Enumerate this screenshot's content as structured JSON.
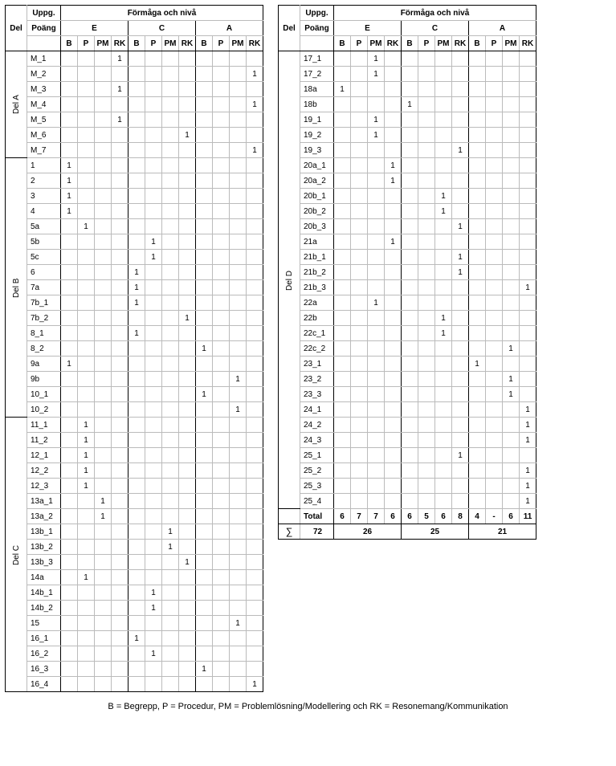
{
  "headers": {
    "del": "Del",
    "uppg": "Uppg.",
    "poang": "Poäng",
    "formaga": "Förmåga och nivå",
    "levels": [
      "E",
      "C",
      "A"
    ],
    "subs": [
      "B",
      "P",
      "PM",
      "RK"
    ]
  },
  "footnote": "B = Begrepp, P = Procedur, PM = Problemlösning/Modellering och RK = Resonemang/Kommunikation",
  "leftSections": [
    {
      "del": "Del A",
      "rows": [
        {
          "u": "M_1",
          "v": [
            "",
            "",
            "",
            "1",
            "",
            "",
            "",
            "",
            "",
            "",
            "",
            ""
          ]
        },
        {
          "u": "M_2",
          "v": [
            "",
            "",
            "",
            "",
            "",
            "",
            "",
            "",
            "",
            "",
            "",
            "1"
          ]
        },
        {
          "u": "M_3",
          "v": [
            "",
            "",
            "",
            "1",
            "",
            "",
            "",
            "",
            "",
            "",
            "",
            ""
          ]
        },
        {
          "u": "M_4",
          "v": [
            "",
            "",
            "",
            "",
            "",
            "",
            "",
            "",
            "",
            "",
            "",
            "1"
          ]
        },
        {
          "u": "M_5",
          "v": [
            "",
            "",
            "",
            "1",
            "",
            "",
            "",
            "",
            "",
            "",
            "",
            ""
          ]
        },
        {
          "u": "M_6",
          "v": [
            "",
            "",
            "",
            "",
            "",
            "",
            "",
            "1",
            "",
            "",
            "",
            ""
          ]
        },
        {
          "u": "M_7",
          "v": [
            "",
            "",
            "",
            "",
            "",
            "",
            "",
            "",
            "",
            "",
            "",
            "1"
          ]
        }
      ]
    },
    {
      "del": "Del B",
      "rows": [
        {
          "u": "1",
          "v": [
            "1",
            "",
            "",
            "",
            "",
            "",
            "",
            "",
            "",
            "",
            "",
            ""
          ]
        },
        {
          "u": "2",
          "v": [
            "1",
            "",
            "",
            "",
            "",
            "",
            "",
            "",
            "",
            "",
            "",
            ""
          ]
        },
        {
          "u": "3",
          "v": [
            "1",
            "",
            "",
            "",
            "",
            "",
            "",
            "",
            "",
            "",
            "",
            ""
          ]
        },
        {
          "u": "4",
          "v": [
            "1",
            "",
            "",
            "",
            "",
            "",
            "",
            "",
            "",
            "",
            "",
            ""
          ]
        },
        {
          "u": "5a",
          "v": [
            "",
            "1",
            "",
            "",
            "",
            "",
            "",
            "",
            "",
            "",
            "",
            ""
          ]
        },
        {
          "u": "5b",
          "v": [
            "",
            "",
            "",
            "",
            "",
            "1",
            "",
            "",
            "",
            "",
            "",
            ""
          ]
        },
        {
          "u": "5c",
          "v": [
            "",
            "",
            "",
            "",
            "",
            "1",
            "",
            "",
            "",
            "",
            "",
            ""
          ]
        },
        {
          "u": "6",
          "v": [
            "",
            "",
            "",
            "",
            "1",
            "",
            "",
            "",
            "",
            "",
            "",
            ""
          ]
        },
        {
          "u": "7a",
          "v": [
            "",
            "",
            "",
            "",
            "1",
            "",
            "",
            "",
            "",
            "",
            "",
            ""
          ]
        },
        {
          "u": "7b_1",
          "v": [
            "",
            "",
            "",
            "",
            "1",
            "",
            "",
            "",
            "",
            "",
            "",
            ""
          ]
        },
        {
          "u": "7b_2",
          "v": [
            "",
            "",
            "",
            "",
            "",
            "",
            "",
            "1",
            "",
            "",
            "",
            ""
          ]
        },
        {
          "u": "8_1",
          "v": [
            "",
            "",
            "",
            "",
            "1",
            "",
            "",
            "",
            "",
            "",
            "",
            ""
          ]
        },
        {
          "u": "8_2",
          "v": [
            "",
            "",
            "",
            "",
            "",
            "",
            "",
            "",
            "1",
            "",
            "",
            ""
          ]
        },
        {
          "u": "9a",
          "v": [
            "1",
            "",
            "",
            "",
            "",
            "",
            "",
            "",
            "",
            "",
            "",
            ""
          ]
        },
        {
          "u": "9b",
          "v": [
            "",
            "",
            "",
            "",
            "",
            "",
            "",
            "",
            "",
            "",
            "1",
            ""
          ]
        },
        {
          "u": "10_1",
          "v": [
            "",
            "",
            "",
            "",
            "",
            "",
            "",
            "",
            "1",
            "",
            "",
            ""
          ]
        },
        {
          "u": "10_2",
          "v": [
            "",
            "",
            "",
            "",
            "",
            "",
            "",
            "",
            "",
            "",
            "1",
            ""
          ]
        }
      ]
    },
    {
      "del": "Del C",
      "rows": [
        {
          "u": "11_1",
          "v": [
            "",
            "1",
            "",
            "",
            "",
            "",
            "",
            "",
            "",
            "",
            "",
            ""
          ]
        },
        {
          "u": "11_2",
          "v": [
            "",
            "1",
            "",
            "",
            "",
            "",
            "",
            "",
            "",
            "",
            "",
            ""
          ]
        },
        {
          "u": "12_1",
          "v": [
            "",
            "1",
            "",
            "",
            "",
            "",
            "",
            "",
            "",
            "",
            "",
            ""
          ]
        },
        {
          "u": "12_2",
          "v": [
            "",
            "1",
            "",
            "",
            "",
            "",
            "",
            "",
            "",
            "",
            "",
            ""
          ]
        },
        {
          "u": "12_3",
          "v": [
            "",
            "1",
            "",
            "",
            "",
            "",
            "",
            "",
            "",
            "",
            "",
            ""
          ]
        },
        {
          "u": "13a_1",
          "v": [
            "",
            "",
            "1",
            "",
            "",
            "",
            "",
            "",
            "",
            "",
            "",
            ""
          ]
        },
        {
          "u": "13a_2",
          "v": [
            "",
            "",
            "1",
            "",
            "",
            "",
            "",
            "",
            "",
            "",
            "",
            ""
          ]
        },
        {
          "u": "13b_1",
          "v": [
            "",
            "",
            "",
            "",
            "",
            "",
            "1",
            "",
            "",
            "",
            "",
            ""
          ]
        },
        {
          "u": "13b_2",
          "v": [
            "",
            "",
            "",
            "",
            "",
            "",
            "1",
            "",
            "",
            "",
            "",
            ""
          ]
        },
        {
          "u": "13b_3",
          "v": [
            "",
            "",
            "",
            "",
            "",
            "",
            "",
            "1",
            "",
            "",
            "",
            ""
          ]
        },
        {
          "u": "14a",
          "v": [
            "",
            "1",
            "",
            "",
            "",
            "",
            "",
            "",
            "",
            "",
            "",
            ""
          ]
        },
        {
          "u": "14b_1",
          "v": [
            "",
            "",
            "",
            "",
            "",
            "1",
            "",
            "",
            "",
            "",
            "",
            ""
          ]
        },
        {
          "u": "14b_2",
          "v": [
            "",
            "",
            "",
            "",
            "",
            "1",
            "",
            "",
            "",
            "",
            "",
            ""
          ]
        },
        {
          "u": "15",
          "v": [
            "",
            "",
            "",
            "",
            "",
            "",
            "",
            "",
            "",
            "",
            "1",
            ""
          ]
        },
        {
          "u": "16_1",
          "v": [
            "",
            "",
            "",
            "",
            "1",
            "",
            "",
            "",
            "",
            "",
            "",
            ""
          ]
        },
        {
          "u": "16_2",
          "v": [
            "",
            "",
            "",
            "",
            "",
            "1",
            "",
            "",
            "",
            "",
            "",
            ""
          ]
        },
        {
          "u": "16_3",
          "v": [
            "",
            "",
            "",
            "",
            "",
            "",
            "",
            "",
            "1",
            "",
            "",
            ""
          ]
        },
        {
          "u": "16_4",
          "v": [
            "",
            "",
            "",
            "",
            "",
            "",
            "",
            "",
            "",
            "",
            "",
            "1"
          ]
        }
      ]
    }
  ],
  "rightSections": [
    {
      "del": "Del D",
      "rows": [
        {
          "u": "17_1",
          "v": [
            "",
            "",
            "1",
            "",
            "",
            "",
            "",
            "",
            "",
            "",
            "",
            ""
          ]
        },
        {
          "u": "17_2",
          "v": [
            "",
            "",
            "1",
            "",
            "",
            "",
            "",
            "",
            "",
            "",
            "",
            ""
          ]
        },
        {
          "u": "18a",
          "v": [
            "1",
            "",
            "",
            "",
            "",
            "",
            "",
            "",
            "",
            "",
            "",
            ""
          ]
        },
        {
          "u": "18b",
          "v": [
            "",
            "",
            "",
            "",
            "1",
            "",
            "",
            "",
            "",
            "",
            "",
            ""
          ]
        },
        {
          "u": "19_1",
          "v": [
            "",
            "",
            "1",
            "",
            "",
            "",
            "",
            "",
            "",
            "",
            "",
            ""
          ]
        },
        {
          "u": "19_2",
          "v": [
            "",
            "",
            "1",
            "",
            "",
            "",
            "",
            "",
            "",
            "",
            "",
            ""
          ]
        },
        {
          "u": "19_3",
          "v": [
            "",
            "",
            "",
            "",
            "",
            "",
            "",
            "1",
            "",
            "",
            "",
            ""
          ]
        },
        {
          "u": "20a_1",
          "v": [
            "",
            "",
            "",
            "1",
            "",
            "",
            "",
            "",
            "",
            "",
            "",
            ""
          ]
        },
        {
          "u": "20a_2",
          "v": [
            "",
            "",
            "",
            "1",
            "",
            "",
            "",
            "",
            "",
            "",
            "",
            ""
          ]
        },
        {
          "u": "20b_1",
          "v": [
            "",
            "",
            "",
            "",
            "",
            "",
            "1",
            "",
            "",
            "",
            "",
            ""
          ]
        },
        {
          "u": "20b_2",
          "v": [
            "",
            "",
            "",
            "",
            "",
            "",
            "1",
            "",
            "",
            "",
            "",
            ""
          ]
        },
        {
          "u": "20b_3",
          "v": [
            "",
            "",
            "",
            "",
            "",
            "",
            "",
            "1",
            "",
            "",
            "",
            ""
          ]
        },
        {
          "u": "21a",
          "v": [
            "",
            "",
            "",
            "1",
            "",
            "",
            "",
            "",
            "",
            "",
            "",
            ""
          ]
        },
        {
          "u": "21b_1",
          "v": [
            "",
            "",
            "",
            "",
            "",
            "",
            "",
            "1",
            "",
            "",
            "",
            ""
          ]
        },
        {
          "u": "21b_2",
          "v": [
            "",
            "",
            "",
            "",
            "",
            "",
            "",
            "1",
            "",
            "",
            "",
            ""
          ]
        },
        {
          "u": "21b_3",
          "v": [
            "",
            "",
            "",
            "",
            "",
            "",
            "",
            "",
            "",
            "",
            "",
            "1"
          ]
        },
        {
          "u": "22a",
          "v": [
            "",
            "",
            "1",
            "",
            "",
            "",
            "",
            "",
            "",
            "",
            "",
            ""
          ]
        },
        {
          "u": "22b",
          "v": [
            "",
            "",
            "",
            "",
            "",
            "",
            "1",
            "",
            "",
            "",
            "",
            ""
          ]
        },
        {
          "u": "22c_1",
          "v": [
            "",
            "",
            "",
            "",
            "",
            "",
            "1",
            "",
            "",
            "",
            "",
            ""
          ]
        },
        {
          "u": "22c_2",
          "v": [
            "",
            "",
            "",
            "",
            "",
            "",
            "",
            "",
            "",
            "",
            "1",
            ""
          ]
        },
        {
          "u": "23_1",
          "v": [
            "",
            "",
            "",
            "",
            "",
            "",
            "",
            "",
            "1",
            "",
            "",
            ""
          ]
        },
        {
          "u": "23_2",
          "v": [
            "",
            "",
            "",
            "",
            "",
            "",
            "",
            "",
            "",
            "",
            "1",
            ""
          ]
        },
        {
          "u": "23_3",
          "v": [
            "",
            "",
            "",
            "",
            "",
            "",
            "",
            "",
            "",
            "",
            "1",
            ""
          ]
        },
        {
          "u": "24_1",
          "v": [
            "",
            "",
            "",
            "",
            "",
            "",
            "",
            "",
            "",
            "",
            "",
            "1"
          ]
        },
        {
          "u": "24_2",
          "v": [
            "",
            "",
            "",
            "",
            "",
            "",
            "",
            "",
            "",
            "",
            "",
            "1"
          ]
        },
        {
          "u": "24_3",
          "v": [
            "",
            "",
            "",
            "",
            "",
            "",
            "",
            "",
            "",
            "",
            "",
            "1"
          ]
        },
        {
          "u": "25_1",
          "v": [
            "",
            "",
            "",
            "",
            "",
            "",
            "",
            "1",
            "",
            "",
            "",
            ""
          ]
        },
        {
          "u": "25_2",
          "v": [
            "",
            "",
            "",
            "",
            "",
            "",
            "",
            "",
            "",
            "",
            "",
            "1"
          ]
        },
        {
          "u": "25_3",
          "v": [
            "",
            "",
            "",
            "",
            "",
            "",
            "",
            "",
            "",
            "",
            "",
            "1"
          ]
        },
        {
          "u": "25_4",
          "v": [
            "",
            "",
            "",
            "",
            "",
            "",
            "",
            "",
            "",
            "",
            "",
            "1"
          ]
        }
      ]
    }
  ],
  "totals": {
    "label": "Total",
    "values": [
      "6",
      "7",
      "7",
      "6",
      "6",
      "5",
      "6",
      "8",
      "4",
      "-",
      "6",
      "11"
    ],
    "grand": "72",
    "groupSums": [
      "26",
      "25",
      "21"
    ],
    "sigma": "∑"
  }
}
